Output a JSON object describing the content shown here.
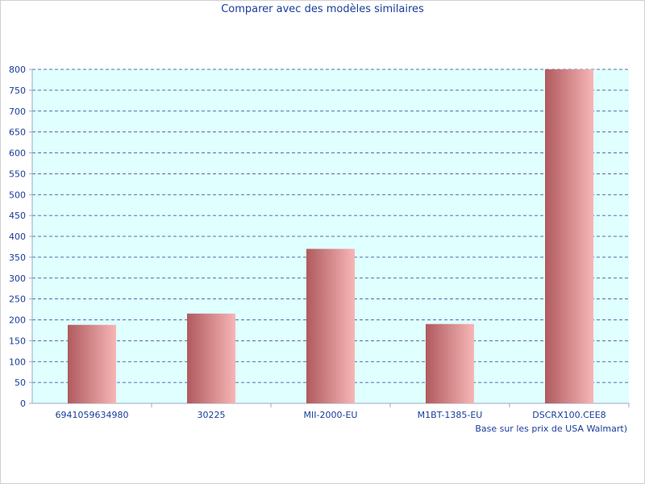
{
  "chart_data": {
    "type": "bar",
    "title": "Comparer avec des modèles similaires",
    "xlabel": "",
    "ylabel": "",
    "categories": [
      "6941059634980",
      "30225",
      "MII-2000-EU",
      "M1BT-1385-EU",
      "DSCRX100.CEE8"
    ],
    "values": [
      188,
      215,
      370,
      190,
      800
    ],
    "ylim": [
      0,
      800
    ],
    "yticks": [
      0,
      50,
      100,
      150,
      200,
      250,
      300,
      350,
      400,
      450,
      500,
      550,
      600,
      650,
      700,
      750,
      800
    ],
    "grid": true,
    "annotation": "Base sur les prix de USA Walmart)",
    "colors": {
      "plot_bg": "#e0ffff",
      "gridline": "#2a3f8c",
      "axis": "#9aa7c7",
      "text": "#1a3d9a",
      "bar_dark": "#b05a5e",
      "bar_light": "#f7b6b6"
    }
  }
}
